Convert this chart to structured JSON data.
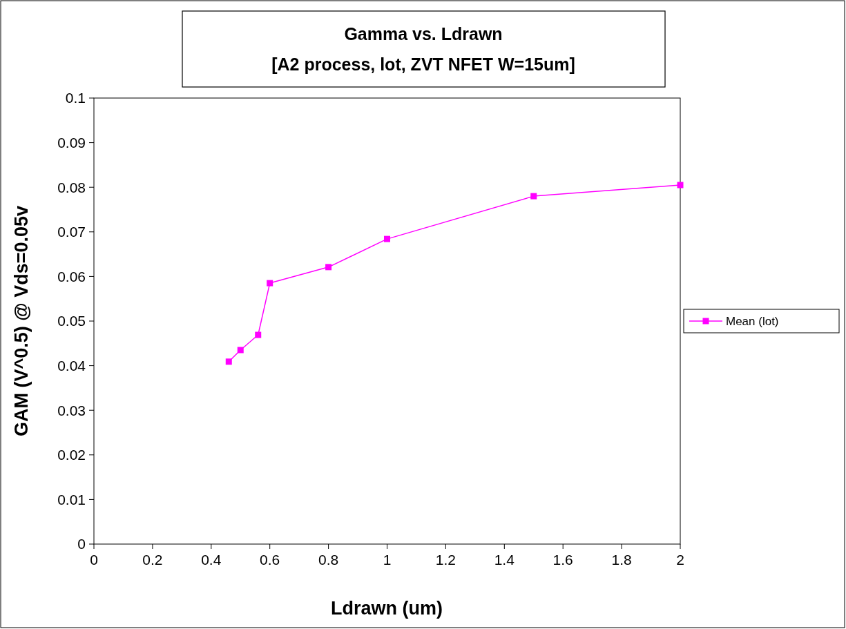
{
  "chart_data": {
    "type": "line",
    "title": "Gamma vs. Ldrawn",
    "subtitle": "[A2 process, lot, ZVT NFET W=15um]",
    "xlabel": "Ldrawn (um)",
    "ylabel": "GAM (V^0.5) @ Vds=0.05v",
    "x": [
      0.46,
      0.5,
      0.56,
      0.6,
      0.8,
      1,
      1.5,
      2
    ],
    "series": [
      {
        "name": "Mean (lot)",
        "color": "#ff00ff",
        "values": [
          0.0409,
          0.0435,
          0.0469,
          0.0585,
          0.0621,
          0.0684,
          0.078,
          0.0805
        ]
      }
    ],
    "xlim": [
      0,
      2
    ],
    "xticks": [
      0,
      0.2,
      0.4,
      0.6,
      0.8,
      1,
      1.2,
      1.4,
      1.6,
      1.8,
      2
    ],
    "ylim": [
      0,
      0.1
    ],
    "yticks": [
      0,
      0.01,
      0.02,
      0.03,
      0.04,
      0.05,
      0.06,
      0.07,
      0.08,
      0.09,
      0.1
    ],
    "grid": false,
    "legend": "right",
    "marker": "square",
    "line_style": "solid"
  }
}
